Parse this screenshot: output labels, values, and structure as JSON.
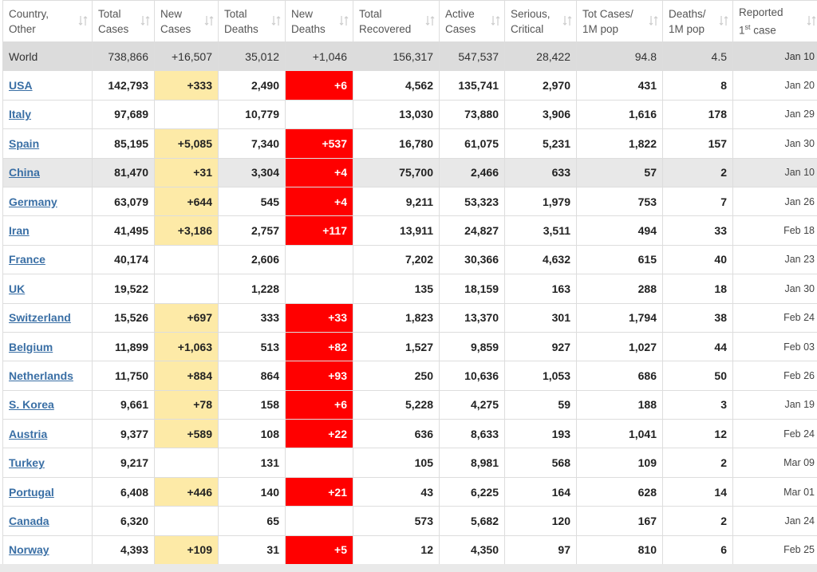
{
  "table": {
    "header": [
      [
        "Country,",
        "Other"
      ],
      [
        "Total",
        "Cases"
      ],
      [
        "New",
        "Cases"
      ],
      [
        "Total",
        "Deaths"
      ],
      [
        "New",
        "Deaths"
      ],
      [
        "Total",
        "Recovered"
      ],
      [
        "Active",
        "Cases"
      ],
      [
        "Serious,",
        "Critical"
      ],
      [
        "Tot Cases/",
        "1M pop"
      ],
      [
        "Deaths/",
        "1M pop"
      ],
      [
        "Reported",
        [
          "1",
          "st",
          " case"
        ]
      ]
    ],
    "rows": [
      {
        "country": "World",
        "total_row": true,
        "shaded": true,
        "cells": [
          "738,866",
          "+16,507",
          "35,012",
          "+1,046",
          "156,317",
          "547,537",
          "28,422",
          "94.8",
          "4.5",
          "Jan 10"
        ]
      },
      {
        "country": "USA",
        "cells": [
          "142,793",
          "+333",
          "2,490",
          "+6",
          "4,562",
          "135,741",
          "2,970",
          "431",
          "8",
          "Jan 20"
        ]
      },
      {
        "country": "Italy",
        "cells": [
          "97,689",
          null,
          "10,779",
          null,
          "13,030",
          "73,880",
          "3,906",
          "1,616",
          "178",
          "Jan 29"
        ]
      },
      {
        "country": "Spain",
        "cells": [
          "85,195",
          "+5,085",
          "7,340",
          "+537",
          "16,780",
          "61,075",
          "5,231",
          "1,822",
          "157",
          "Jan 30"
        ]
      },
      {
        "country": "China",
        "shaded": true,
        "cells": [
          "81,470",
          "+31",
          "3,304",
          "+4",
          "75,700",
          "2,466",
          "633",
          "57",
          "2",
          "Jan 10"
        ]
      },
      {
        "country": "Germany",
        "cells": [
          "63,079",
          "+644",
          "545",
          "+4",
          "9,211",
          "53,323",
          "1,979",
          "753",
          "7",
          "Jan 26"
        ]
      },
      {
        "country": "Iran",
        "cells": [
          "41,495",
          "+3,186",
          "2,757",
          "+117",
          "13,911",
          "24,827",
          "3,511",
          "494",
          "33",
          "Feb 18"
        ]
      },
      {
        "country": "France",
        "cells": [
          "40,174",
          null,
          "2,606",
          null,
          "7,202",
          "30,366",
          "4,632",
          "615",
          "40",
          "Jan 23"
        ]
      },
      {
        "country": "UK",
        "cells": [
          "19,522",
          null,
          "1,228",
          null,
          "135",
          "18,159",
          "163",
          "288",
          "18",
          "Jan 30"
        ]
      },
      {
        "country": "Switzerland",
        "cells": [
          "15,526",
          "+697",
          "333",
          "+33",
          "1,823",
          "13,370",
          "301",
          "1,794",
          "38",
          "Feb 24"
        ]
      },
      {
        "country": "Belgium",
        "cells": [
          "11,899",
          "+1,063",
          "513",
          "+82",
          "1,527",
          "9,859",
          "927",
          "1,027",
          "44",
          "Feb 03"
        ]
      },
      {
        "country": "Netherlands",
        "cells": [
          "11,750",
          "+884",
          "864",
          "+93",
          "250",
          "10,636",
          "1,053",
          "686",
          "50",
          "Feb 26"
        ]
      },
      {
        "country": "S. Korea",
        "cells": [
          "9,661",
          "+78",
          "158",
          "+6",
          "5,228",
          "4,275",
          "59",
          "188",
          "3",
          "Jan 19"
        ]
      },
      {
        "country": "Austria",
        "cells": [
          "9,377",
          "+589",
          "108",
          "+22",
          "636",
          "8,633",
          "193",
          "1,041",
          "12",
          "Feb 24"
        ]
      },
      {
        "country": "Turkey",
        "cells": [
          "9,217",
          null,
          "131",
          null,
          "105",
          "8,981",
          "568",
          "109",
          "2",
          "Mar 09"
        ]
      },
      {
        "country": "Portugal",
        "cells": [
          "6,408",
          "+446",
          "140",
          "+21",
          "43",
          "6,225",
          "164",
          "628",
          "14",
          "Mar 01"
        ]
      },
      {
        "country": "Canada",
        "cells": [
          "6,320",
          null,
          "65",
          null,
          "573",
          "5,682",
          "120",
          "167",
          "2",
          "Jan 24"
        ]
      },
      {
        "country": "Norway",
        "cells": [
          "4,393",
          "+109",
          "31",
          "+5",
          "12",
          "4,350",
          "97",
          "810",
          "6",
          "Feb 25"
        ]
      }
    ]
  }
}
